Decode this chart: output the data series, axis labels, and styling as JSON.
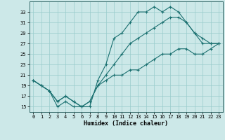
{
  "xlabel": "Humidex (Indice chaleur)",
  "bg_color": "#cce8e8",
  "grid_color": "#99cccc",
  "line_color": "#1a7070",
  "line1_x": [
    0,
    1,
    2,
    3,
    4,
    5,
    6,
    7,
    8,
    9,
    10,
    11,
    12,
    13,
    14,
    15,
    16,
    17,
    18,
    19,
    20,
    21,
    22,
    23
  ],
  "line1_y": [
    20,
    19,
    18,
    15,
    16,
    15,
    15,
    15,
    20,
    23,
    28,
    29,
    31,
    33,
    33,
    34,
    33,
    34,
    33,
    31,
    29,
    28,
    27,
    27
  ],
  "line2_x": [
    0,
    1,
    2,
    3,
    4,
    5,
    6,
    7,
    8,
    9,
    10,
    11,
    12,
    13,
    14,
    15,
    16,
    17,
    18,
    19,
    20,
    21,
    22,
    23
  ],
  "line2_y": [
    20,
    19,
    18,
    16,
    17,
    16,
    15,
    16,
    19,
    21,
    23,
    25,
    27,
    28,
    29,
    30,
    31,
    32,
    32,
    31,
    29,
    27,
    27,
    27
  ],
  "line3_x": [
    0,
    1,
    2,
    3,
    4,
    5,
    6,
    7,
    8,
    9,
    10,
    11,
    12,
    13,
    14,
    15,
    16,
    17,
    18,
    19,
    20,
    21,
    22,
    23
  ],
  "line3_y": [
    20,
    19,
    18,
    16,
    17,
    16,
    15,
    16,
    19,
    20,
    21,
    21,
    22,
    22,
    23,
    24,
    25,
    25,
    26,
    26,
    25,
    25,
    26,
    27
  ],
  "xlim": [
    -0.5,
    23.5
  ],
  "ylim": [
    14,
    35
  ],
  "yticks": [
    15,
    17,
    19,
    21,
    23,
    25,
    27,
    29,
    31,
    33
  ],
  "xticks": [
    0,
    1,
    2,
    3,
    4,
    5,
    6,
    7,
    8,
    9,
    10,
    11,
    12,
    13,
    14,
    15,
    16,
    17,
    18,
    19,
    20,
    21,
    22,
    23
  ],
  "figsize": [
    3.2,
    2.0
  ],
  "dpi": 100
}
